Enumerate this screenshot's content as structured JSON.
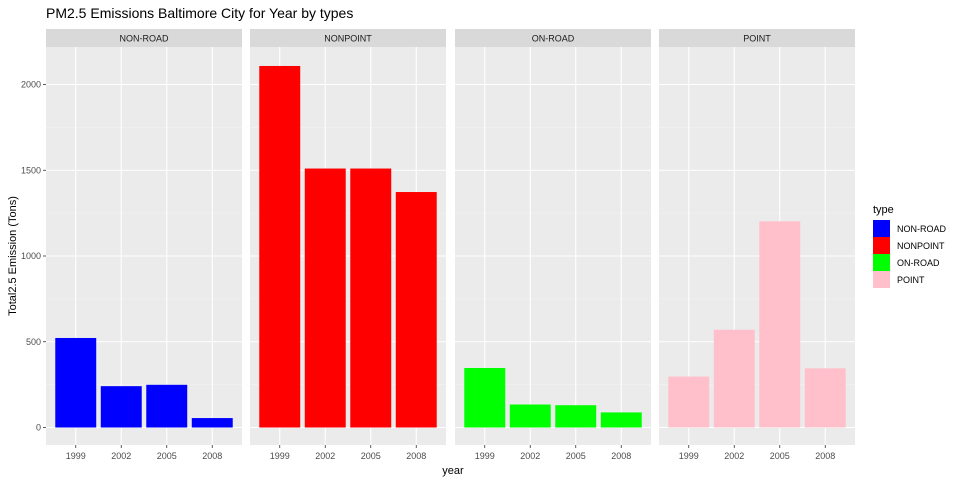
{
  "chart_data": {
    "type": "bar",
    "title": "PM2.5 Emissions Baltimore City for Year by types",
    "xlabel": "year",
    "ylabel": "Total2.5 Emission (Tons)",
    "ylim": [
      0,
      2200
    ],
    "yticks": [
      0,
      500,
      1000,
      1500,
      2000
    ],
    "categories": [
      "1999",
      "2002",
      "2005",
      "2008"
    ],
    "facet_by": "type",
    "grid": true,
    "legend": {
      "title": "type",
      "placement": "right"
    },
    "series": [
      {
        "name": "NON-ROAD",
        "color": "#0000FF",
        "values": [
          522,
          241,
          249,
          55
        ]
      },
      {
        "name": "NONPOINT",
        "color": "#FF0000",
        "values": [
          2108,
          1510,
          1510,
          1373
        ]
      },
      {
        "name": "ON-ROAD",
        "color": "#00FF00",
        "values": [
          347,
          134,
          130,
          88
        ]
      },
      {
        "name": "POINT",
        "color": "#FFC0CB",
        "values": [
          297,
          570,
          1202,
          345
        ]
      }
    ]
  }
}
